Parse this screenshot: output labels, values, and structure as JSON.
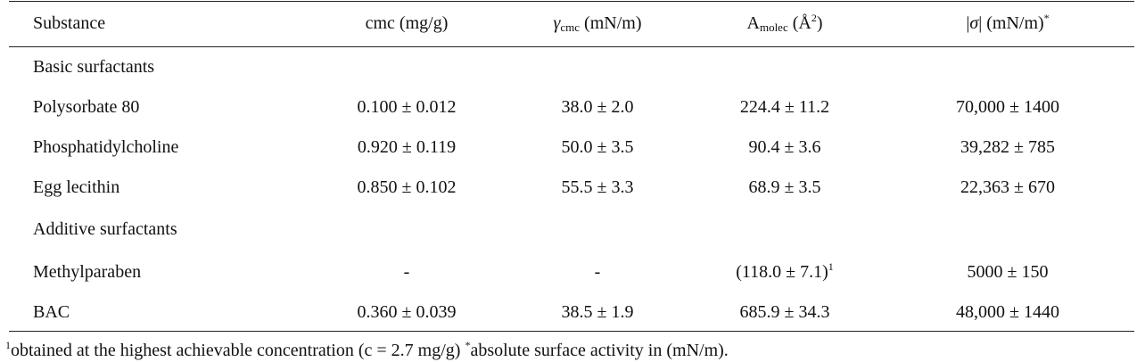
{
  "table": {
    "headers": {
      "substance": "Substance",
      "cmc": "cmc (mg/g)",
      "gamma_symbol": "γ",
      "gamma_sub": "cmc",
      "gamma_unit": " (mN/m)",
      "amolec_base": "A",
      "amolec_sub": "molec",
      "amolec_unit_open": " (Å",
      "amolec_sup": "2",
      "amolec_unit_close": ")",
      "sigma_open": "|",
      "sigma_symbol": "σ",
      "sigma_close": "| (mN/m)",
      "sigma_sup": "*"
    },
    "groups": [
      {
        "label": "Basic surfactants",
        "rows": [
          {
            "substance": "Polysorbate 80",
            "cmc": "0.100 ± 0.012",
            "gamma": "38.0 ± 2.0",
            "amolec": "224.4 ± 11.2",
            "amolec_sup": "",
            "sigma": "70,000 ± 1400"
          },
          {
            "substance": "Phosphatidylcholine",
            "cmc": "0.920 ± 0.119",
            "gamma": "50.0 ± 3.5",
            "amolec": "90.4 ± 3.6",
            "amolec_sup": "",
            "sigma": "39,282 ± 785"
          },
          {
            "substance": "Egg lecithin",
            "cmc": "0.850 ± 0.102",
            "gamma": "55.5 ± 3.3",
            "amolec": "68.9 ± 3.5",
            "amolec_sup": "",
            "sigma": "22,363 ± 670"
          }
        ]
      },
      {
        "label": "Additive surfactants",
        "rows": [
          {
            "substance": "Methylparaben",
            "cmc": "-",
            "gamma": "-",
            "amolec": "(118.0 ± 7.1)",
            "amolec_sup": "1",
            "sigma": "5000 ± 150"
          },
          {
            "substance": "BAC",
            "cmc": "0.360 ± 0.039",
            "gamma": "38.5 ± 1.9",
            "amolec": "685.9 ± 34.3",
            "amolec_sup": "",
            "sigma": "48,000 ± 1440"
          }
        ]
      }
    ]
  },
  "footnote": {
    "sup1": "1",
    "text1": "obtained at the highest achievable concentration (c = 2.7 mg/g) ",
    "sup2": "*",
    "text2": "absolute surface activity in (mN/m)."
  }
}
